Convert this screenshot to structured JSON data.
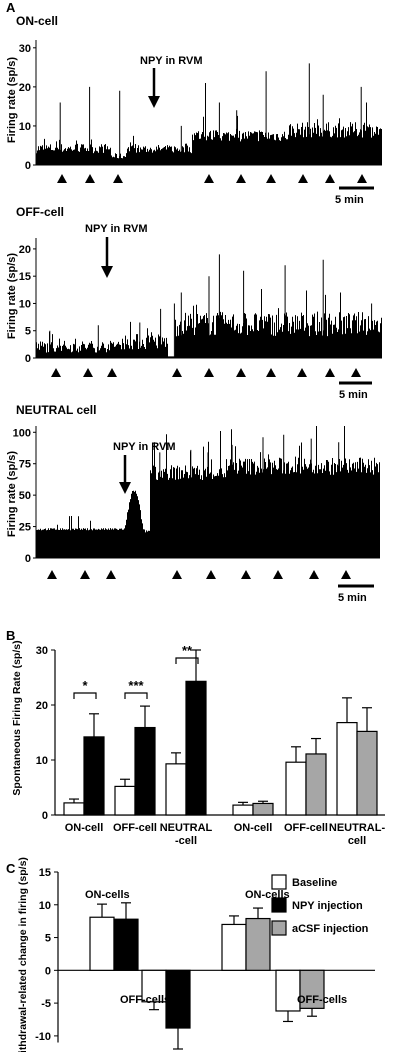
{
  "panel_labels": {
    "a": "A",
    "b": "B",
    "c": "C"
  },
  "panelA": {
    "ylabel": "Firing rate (sp/s)",
    "scale_bar_label": "5 min",
    "event_label": "NPY in RVM",
    "traces": [
      {
        "title": "ON-cell",
        "yticks": [
          0,
          10,
          20,
          30
        ],
        "ymax": 32
      },
      {
        "title": "OFF-cell",
        "yticks": [
          0,
          5,
          10,
          15,
          20
        ],
        "ymax": 22
      },
      {
        "title": "NEUTRAL cell",
        "yticks": [
          0,
          25,
          50,
          75,
          100
        ],
        "ymax": 105
      }
    ]
  },
  "chart_data": [
    {
      "type": "bar",
      "title": "",
      "ylabel": "Spontaneous Firing Rate (sp/s)",
      "ylim": [
        0,
        30
      ],
      "yticks": [
        0,
        10,
        20,
        30
      ],
      "categories": [
        "ON-cell",
        "OFF-cell",
        "NEUTRAL -cell",
        "ON-cell",
        "OFF-cell",
        "NEUTRAL- cell"
      ],
      "series": [
        {
          "name": "Baseline",
          "values": [
            2.2,
            5.2,
            9.3,
            1.8,
            9.6,
            16.8
          ],
          "errors": [
            0.7,
            1.3,
            2.0,
            0.5,
            2.8,
            4.5
          ],
          "color": "#ffffff"
        },
        {
          "name": "NPY injection",
          "values": [
            14.2,
            15.9,
            24.3,
            null,
            null,
            null
          ],
          "errors": [
            4.2,
            3.9,
            5.7,
            null,
            null,
            null
          ],
          "color": "#000000"
        },
        {
          "name": "aCSF injection",
          "values": [
            null,
            null,
            null,
            2.1,
            11.1,
            15.2
          ],
          "errors": [
            null,
            null,
            null,
            0.4,
            2.8,
            4.3
          ],
          "color": "#a6a6a6"
        }
      ],
      "significance": [
        "*",
        "***",
        "**"
      ]
    },
    {
      "type": "bar",
      "title": "",
      "ylabel": "Withdrawal-related change in firing (sp/s)",
      "ylim": [
        -12,
        15
      ],
      "yticks": [
        15,
        10,
        5,
        0,
        -5,
        -10
      ],
      "categories": [
        "ON-cells",
        "OFF-cells",
        "ON-cells",
        "OFF-cells"
      ],
      "series": [
        {
          "name": "Baseline",
          "values": [
            8.1,
            -4.8,
            7.0,
            -6.2
          ],
          "errors": [
            2.0,
            1.2,
            1.3,
            1.6
          ],
          "color": "#ffffff"
        },
        {
          "name": "NPY injection",
          "values": [
            7.8,
            -8.8,
            null,
            null
          ],
          "errors": [
            2.5,
            3.2,
            null,
            null
          ],
          "color": "#000000"
        },
        {
          "name": "aCSF injection",
          "values": [
            null,
            null,
            7.9,
            -5.8
          ],
          "errors": [
            null,
            null,
            1.6,
            1.2
          ],
          "color": "#a6a6a6"
        }
      ],
      "legend": {
        "position": "top-right",
        "entries": [
          "Baseline",
          "NPY injection",
          "aCSF injection"
        ]
      }
    }
  ]
}
